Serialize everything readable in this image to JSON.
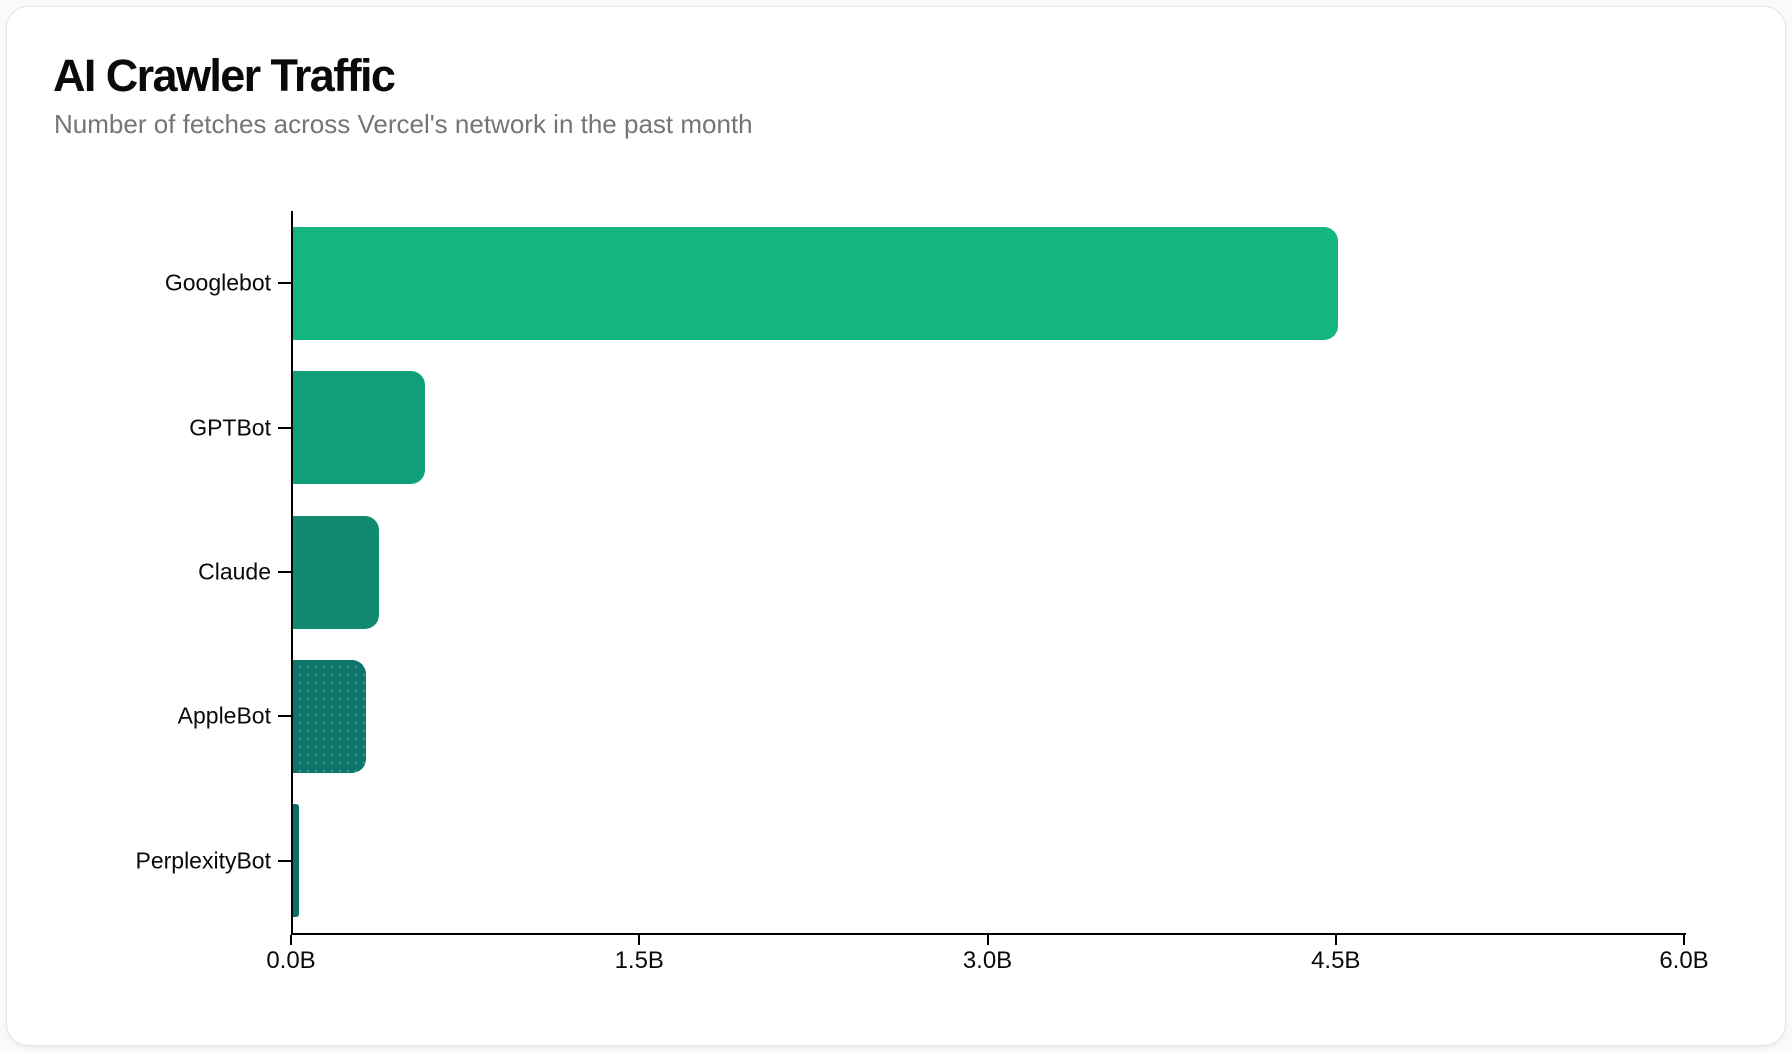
{
  "chart_data": {
    "type": "bar",
    "orientation": "horizontal",
    "title": "AI Crawler Traffic",
    "subtitle": "Number of fetches across Vercel's network in the past month",
    "categories": [
      "Googlebot",
      "GPTBot",
      "Claude",
      "AppleBot",
      "PerplexityBot"
    ],
    "values_billions": [
      4.5,
      0.569,
      0.37,
      0.314,
      0.025
    ],
    "unit": "B",
    "xlabel": "",
    "ylabel": "",
    "xlim": [
      0,
      6
    ],
    "x_ticks": [
      "0.0B",
      "1.5B",
      "3.0B",
      "4.5B",
      "6.0B"
    ],
    "x_tick_values": [
      0,
      1.5,
      3,
      4.5,
      6
    ],
    "bar_colors": [
      "#13b67f",
      "#0fa079",
      "#128a70",
      "#0d7469",
      "#0d6f64"
    ],
    "bar_patterns": [
      "solid",
      "solid",
      "solid",
      "dots",
      "dots"
    ],
    "grid": false,
    "legend": "none",
    "axis_color": "#000000",
    "background_color": "#ffffff"
  }
}
